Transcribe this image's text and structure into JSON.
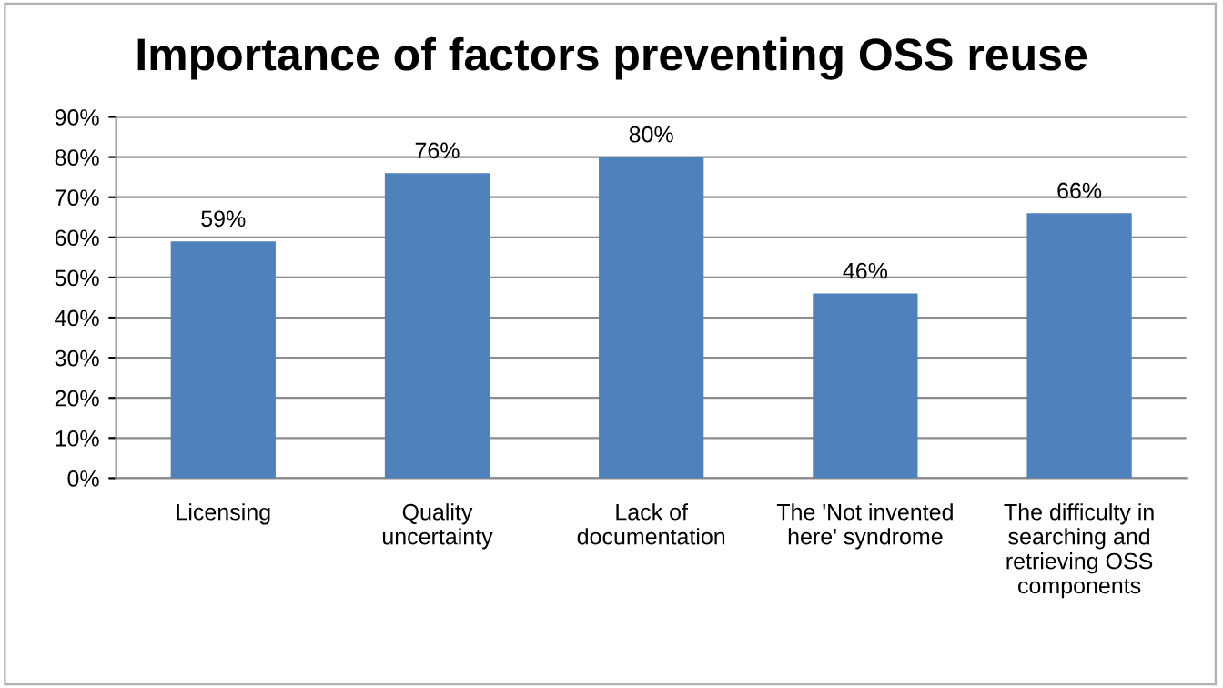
{
  "chart_data": {
    "type": "bar",
    "title": "Importance of factors preventing OSS reuse",
    "categories": [
      "Licensing",
      "Quality\nuncertainty",
      "Lack of\ndocumentation",
      "The 'Not invented\nhere' syndrome",
      "The difficulty in\nsearching and\nretrieving OSS\ncomponents"
    ],
    "values": [
      59,
      76,
      80,
      46,
      66
    ],
    "value_labels": [
      "59%",
      "76%",
      "80%",
      "46%",
      "66%"
    ],
    "color": "#4f81bd",
    "ylim": [
      0,
      90
    ],
    "yticks": [
      {
        "value": 0,
        "label": "0%"
      },
      {
        "value": 10,
        "label": "10%"
      },
      {
        "value": 20,
        "label": "20%"
      },
      {
        "value": 30,
        "label": "30%"
      },
      {
        "value": 40,
        "label": "40%"
      },
      {
        "value": 50,
        "label": "50%"
      },
      {
        "value": 60,
        "label": "60%"
      },
      {
        "value": 70,
        "label": "70%"
      },
      {
        "value": 80,
        "label": "80%"
      },
      {
        "value": 90,
        "label": "90%"
      }
    ],
    "grid": "y",
    "legend": false
  }
}
